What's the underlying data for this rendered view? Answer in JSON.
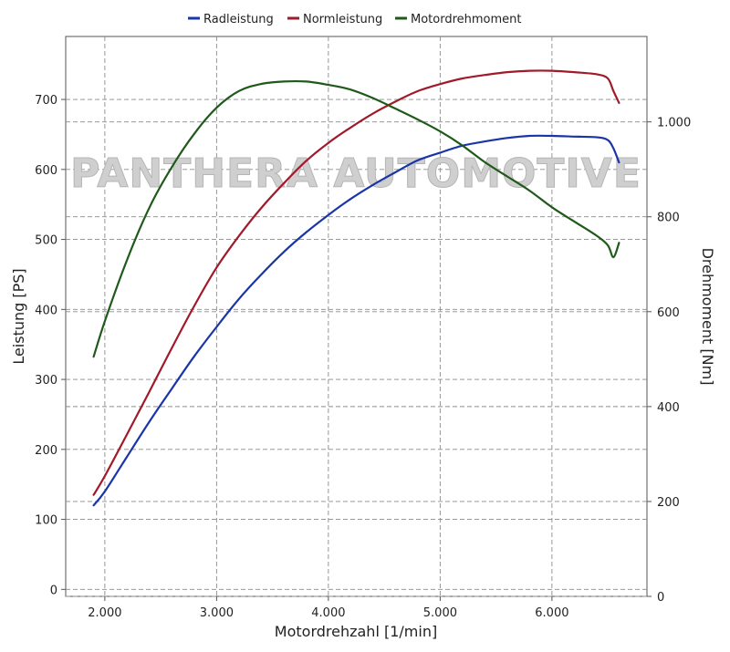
{
  "chart_data": {
    "type": "line",
    "watermark": "PANTHERA AUTOMOTIVE",
    "xlabel": "Motordrehzahl [1/min]",
    "ylabel_left": "Leistung [PS]",
    "ylabel_right": "Drehmoment [Nm]",
    "xlim": [
      1650,
      6850
    ],
    "ylim_left": [
      -10,
      790
    ],
    "ylim_right": [
      0,
      1180
    ],
    "x_ticks": [
      {
        "value": 2000,
        "label": "2.000"
      },
      {
        "value": 3000,
        "label": "3.000"
      },
      {
        "value": 4000,
        "label": "4.000"
      },
      {
        "value": 5000,
        "label": "5.000"
      },
      {
        "value": 6000,
        "label": "6.000"
      }
    ],
    "y_left_ticks": [
      {
        "value": 0,
        "label": "0"
      },
      {
        "value": 100,
        "label": "100"
      },
      {
        "value": 200,
        "label": "200"
      },
      {
        "value": 300,
        "label": "300"
      },
      {
        "value": 400,
        "label": "400"
      },
      {
        "value": 500,
        "label": "500"
      },
      {
        "value": 600,
        "label": "600"
      },
      {
        "value": 700,
        "label": "700"
      }
    ],
    "y_right_ticks": [
      {
        "value": 0,
        "label": "0"
      },
      {
        "value": 200,
        "label": "200"
      },
      {
        "value": 400,
        "label": "400"
      },
      {
        "value": 600,
        "label": "600"
      },
      {
        "value": 800,
        "label": "800"
      },
      {
        "value": 1000,
        "label": "1.000"
      }
    ],
    "grid": true,
    "legend_position": "top-center",
    "series": [
      {
        "name": "Radleistung",
        "color": "#1a35a8",
        "axis": "left",
        "x": [
          1900,
          2000,
          2200,
          2400,
          2600,
          2800,
          3000,
          3200,
          3400,
          3600,
          3800,
          4000,
          4200,
          4400,
          4600,
          4800,
          5000,
          5200,
          5400,
          5600,
          5800,
          6000,
          6200,
          6400,
          6500,
          6550,
          6600
        ],
        "values": [
          120,
          140,
          190,
          240,
          287,
          333,
          375,
          415,
          450,
          482,
          510,
          535,
          558,
          578,
          596,
          613,
          624,
          634,
          640,
          645,
          648,
          648,
          647,
          646,
          642,
          630,
          610
        ]
      },
      {
        "name": "Normleistung",
        "color": "#a01a2a",
        "axis": "left",
        "x": [
          1900,
          2000,
          2200,
          2400,
          2600,
          2800,
          3000,
          3200,
          3400,
          3600,
          3800,
          4000,
          4200,
          4400,
          4600,
          4800,
          5000,
          5200,
          5400,
          5600,
          5800,
          6000,
          6200,
          6400,
          6500,
          6550,
          6600
        ],
        "values": [
          135,
          162,
          222,
          283,
          345,
          405,
          460,
          505,
          545,
          580,
          612,
          638,
          660,
          680,
          697,
          712,
          722,
          730,
          735,
          739,
          741,
          741,
          739,
          736,
          730,
          712,
          695
        ]
      },
      {
        "name": "Motordrehmoment",
        "color": "#1f5a1a",
        "axis": "right",
        "x": [
          1900,
          2000,
          2200,
          2400,
          2600,
          2800,
          3000,
          3200,
          3400,
          3600,
          3800,
          4000,
          4200,
          4400,
          4600,
          4800,
          5000,
          5200,
          5400,
          5600,
          5800,
          6000,
          6200,
          6400,
          6500,
          6550,
          6600
        ],
        "values": [
          505,
          580,
          710,
          820,
          905,
          975,
          1030,
          1065,
          1080,
          1085,
          1085,
          1078,
          1068,
          1050,
          1028,
          1005,
          980,
          950,
          915,
          885,
          855,
          820,
          790,
          760,
          740,
          715,
          745
        ]
      }
    ]
  }
}
